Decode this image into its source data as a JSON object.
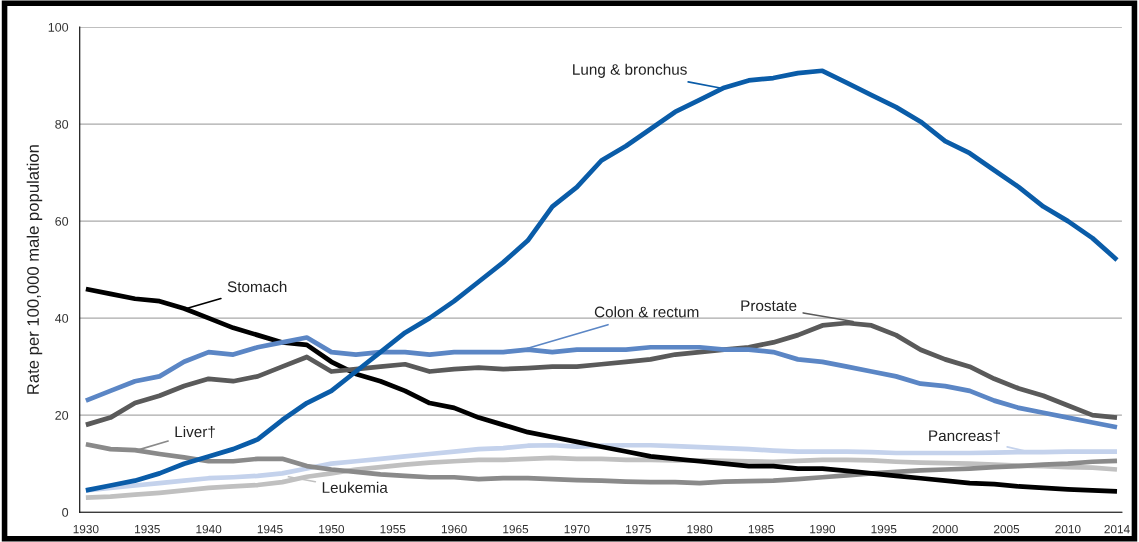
{
  "chart_data": {
    "type": "line",
    "ylabel": "Rate per 100,000 male population",
    "x": [
      1930,
      1932,
      1934,
      1936,
      1938,
      1940,
      1942,
      1944,
      1946,
      1948,
      1950,
      1952,
      1954,
      1956,
      1958,
      1960,
      1962,
      1964,
      1966,
      1968,
      1970,
      1972,
      1974,
      1976,
      1978,
      1980,
      1982,
      1984,
      1986,
      1988,
      1990,
      1992,
      1994,
      1996,
      1998,
      2000,
      2002,
      2004,
      2006,
      2008,
      2010,
      2012,
      2014
    ],
    "series": [
      {
        "name": "Pancreas†",
        "color": "#c4d2ec",
        "values": [
          4.5,
          5,
          5.5,
          6,
          6.5,
          7,
          7.2,
          7.5,
          8,
          9,
          10,
          10.5,
          11,
          11.5,
          12,
          12.5,
          13,
          13.2,
          13.7,
          13.8,
          13.5,
          13.7,
          13.8,
          13.8,
          13.6,
          13.4,
          13.2,
          13,
          12.7,
          12.5,
          12.5,
          12.5,
          12.4,
          12.2,
          12.2,
          12.2,
          12.2,
          12.3,
          12.4,
          12.4,
          12.5,
          12.5,
          12.5
        ]
      },
      {
        "name": "Leukemia",
        "color": "#c0c0c0",
        "values": [
          3,
          3.2,
          3.6,
          4,
          4.5,
          5,
          5.3,
          5.6,
          6.2,
          7.3,
          8,
          8.8,
          9.3,
          9.8,
          10.2,
          10.5,
          10.8,
          10.8,
          11,
          11.2,
          11,
          11,
          10.8,
          10.8,
          10.7,
          10.7,
          10.6,
          10.5,
          10.4,
          10.6,
          10.8,
          10.8,
          10.7,
          10.4,
          10.2,
          10.1,
          10,
          9.8,
          9.6,
          9.5,
          9.3,
          9.2,
          8.8
        ]
      },
      {
        "name": "Liver†",
        "color": "#8a8a8a",
        "values": [
          14,
          13,
          12.8,
          12,
          11.3,
          10.5,
          10.5,
          11,
          11,
          9.5,
          8.8,
          8.3,
          7.8,
          7.5,
          7.2,
          7.2,
          6.8,
          7,
          7,
          6.8,
          6.6,
          6.5,
          6.3,
          6.2,
          6.2,
          6,
          6.3,
          6.4,
          6.5,
          6.8,
          7.2,
          7.6,
          8,
          8.3,
          8.6,
          8.8,
          9,
          9.3,
          9.5,
          9.8,
          10,
          10.4,
          10.6
        ]
      },
      {
        "name": "Stomach",
        "color": "#000000",
        "values": [
          46,
          45,
          44,
          43.5,
          42,
          40,
          38,
          36.5,
          35,
          34.5,
          31,
          28.5,
          27,
          25,
          22.5,
          21.5,
          19.5,
          18,
          16.5,
          15.5,
          14.5,
          13.5,
          12.5,
          11.5,
          11,
          10.5,
          10,
          9.5,
          9.5,
          9,
          9,
          8.5,
          8,
          7.5,
          7,
          6.5,
          6,
          5.8,
          5.3,
          5,
          4.7,
          4.5,
          4.3
        ]
      },
      {
        "name": "Prostate",
        "color": "#5a5a5a",
        "values": [
          18,
          19.5,
          22.5,
          24,
          26,
          27.5,
          27,
          28,
          30,
          32,
          29,
          29.5,
          30,
          30.5,
          29,
          29.5,
          29.8,
          29.5,
          29.7,
          30,
          30,
          30.5,
          31,
          31.5,
          32.5,
          33,
          33.5,
          34,
          35,
          36.5,
          38.5,
          39,
          38.5,
          36.5,
          33.5,
          31.5,
          30,
          27.5,
          25.5,
          24,
          22,
          20,
          19.5
        ]
      },
      {
        "name": "Colon & rectum",
        "color": "#5b86c5",
        "values": [
          23,
          25,
          27,
          28,
          31,
          33,
          32.5,
          34,
          35,
          36,
          33,
          32.5,
          33,
          33,
          32.5,
          33,
          33,
          33,
          33.5,
          33,
          33.5,
          33.5,
          33.5,
          34,
          34,
          34,
          33.5,
          33.5,
          33,
          31.5,
          31,
          30,
          29,
          28,
          26.5,
          26,
          25,
          23,
          21.5,
          20.5,
          19.5,
          18.5,
          17.5
        ]
      },
      {
        "name": "Lung & bronchus",
        "color": "#0a5ca8",
        "values": [
          4.5,
          5.5,
          6.5,
          8,
          10,
          11.5,
          13,
          15,
          19,
          22.5,
          25,
          29,
          33,
          37,
          40,
          43.5,
          47.5,
          51.5,
          56,
          63,
          67,
          72.5,
          75.5,
          79,
          82.5,
          85,
          87.5,
          89,
          89.5,
          90.5,
          91,
          88.5,
          86,
          83.5,
          80.5,
          76.5,
          74,
          70.5,
          67,
          63,
          60,
          56.5,
          52
        ]
      }
    ],
    "xlim": [
      1929.5,
      2014.4
    ],
    "xticks": [
      1930,
      1935,
      1940,
      1945,
      1950,
      1955,
      1960,
      1965,
      1970,
      1975,
      1980,
      1985,
      1990,
      1995,
      2000,
      2005,
      2010,
      2014
    ],
    "ylim": [
      0,
      100
    ],
    "yticks": [
      0,
      20,
      40,
      60,
      80,
      100
    ],
    "grid": "y"
  }
}
